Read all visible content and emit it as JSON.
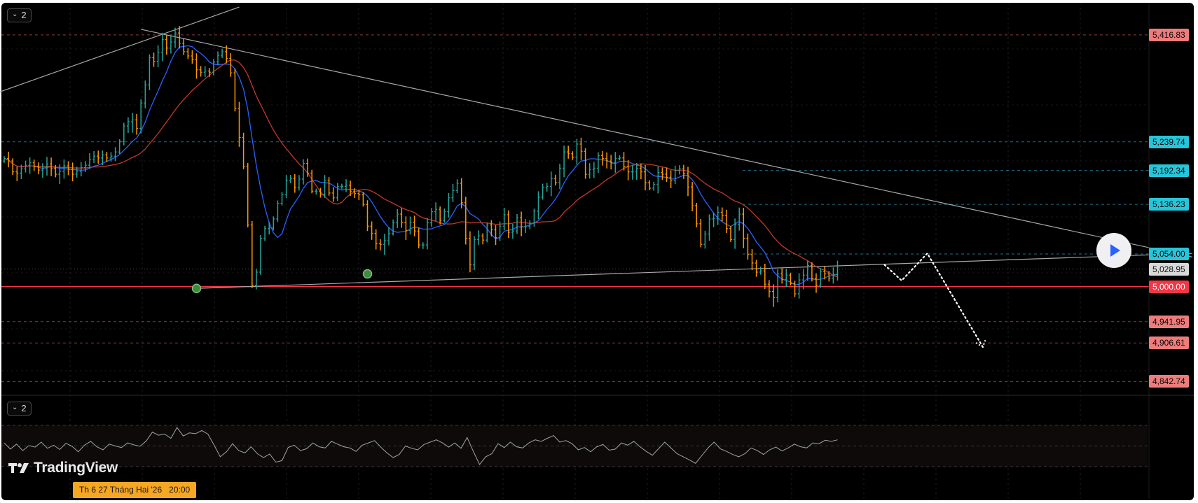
{
  "toolbar": {
    "main_pane_toggle": "2",
    "osc_pane_toggle": "2"
  },
  "branding": {
    "logo_text": "TradingView"
  },
  "cursor": {
    "date_label": "Th 6 27 Tháng Hai '26",
    "time_label": "20:00"
  },
  "colors": {
    "bull": "#26a69a",
    "bear": "#ff9800",
    "ma_fast": "#2962ff",
    "ma_slow": "#c0392b",
    "resistance_label_bg": "#26c6da",
    "support_label_bg": "#ef7b7b",
    "key_level": "#f23645",
    "current_price_bg": "#d9d9d9"
  },
  "chart_data": {
    "type": "candlestick",
    "y_axis": {
      "min": 4820,
      "max": 5470
    },
    "price_levels": [
      {
        "label": "5,416.83",
        "value": 5416.83,
        "kind": "support"
      },
      {
        "label": "5,239.74",
        "value": 5239.74,
        "kind": "resistance"
      },
      {
        "label": "5,192.34",
        "value": 5192.34,
        "kind": "resistance"
      },
      {
        "label": "5,136.23",
        "value": 5136.23,
        "kind": "resistance"
      },
      {
        "label": "5,054.00",
        "value": 5054.0,
        "kind": "resistance"
      },
      {
        "label": "5,028.95",
        "value": 5028.95,
        "kind": "current"
      },
      {
        "label": "5,000.00",
        "value": 5000.0,
        "kind": "key"
      },
      {
        "label": "4,941.95",
        "value": 4941.95,
        "kind": "support"
      },
      {
        "label": "4,906.61",
        "value": 4906.61,
        "kind": "support"
      },
      {
        "label": "4,842.74",
        "value": 4842.74,
        "kind": "support"
      }
    ],
    "series": [
      {
        "name": "",
        "kind": "price",
        "values": [
          5212,
          5208,
          5190,
          5188,
          5195,
          5201,
          5205,
          5199,
          5193,
          5196,
          5203,
          5196,
          5186,
          5191,
          5200,
          5194,
          5186,
          5191,
          5197,
          5201,
          5211,
          5216,
          5213,
          5218,
          5213,
          5216,
          5223,
          5240,
          5266,
          5273,
          5276,
          5262,
          5304,
          5334,
          5379,
          5373,
          5388,
          5409,
          5395,
          5405,
          5420,
          5403,
          5389,
          5382,
          5376,
          5359,
          5355,
          5357,
          5355,
          5372,
          5383,
          5389,
          5378,
          5354,
          5295,
          5247,
          5199,
          5102,
          5002,
          5024,
          5080,
          5096,
          5097,
          5112,
          5138,
          5152,
          5176,
          5179,
          5164,
          5178,
          5204,
          5188,
          5158,
          5158,
          5153,
          5176,
          5155,
          5147,
          5166,
          5166,
          5168,
          5158,
          5154,
          5152,
          5136,
          5100,
          5088,
          5071,
          5070,
          5076,
          5088,
          5106,
          5120,
          5106,
          5093,
          5106,
          5092,
          5069,
          5069,
          5106,
          5124,
          5128,
          5110,
          5124,
          5147,
          5159,
          5171,
          5139,
          5080,
          5036,
          5078,
          5084,
          5077,
          5102,
          5094,
          5081,
          5100,
          5119,
          5090,
          5092,
          5114,
          5099,
          5100,
          5105,
          5125,
          5148,
          5164,
          5166,
          5179,
          5172,
          5196,
          5223,
          5220,
          5214,
          5236,
          5224,
          5186,
          5194,
          5196,
          5217,
          5212,
          5208,
          5205,
          5212,
          5213,
          5199,
          5190,
          5190,
          5196,
          5190,
          5172,
          5163,
          5169,
          5189,
          5186,
          5181,
          5176,
          5192,
          5195,
          5187,
          5165,
          5134,
          5104,
          5070,
          5087,
          5112,
          5113,
          5123,
          5118,
          5096,
          5078,
          5103,
          5120,
          5080,
          5053,
          5039,
          5024,
          5026,
          5004,
          4992,
          4982,
          5021,
          5012,
          5019,
          5005,
          4988,
          5011,
          5019,
          5035,
          5013,
          5002,
          5025,
          5021,
          5014,
          5020,
          5034
        ]
      },
      {
        "name": "",
        "kind": "oscillator",
        "values": [
          0.58,
          0.42,
          0.55,
          0.38,
          0.51,
          0.47,
          0.6,
          0.44,
          0.52,
          0.41,
          0.57,
          0.49,
          0.35,
          0.52,
          0.62,
          0.48,
          0.4,
          0.55,
          0.5,
          0.46,
          0.58,
          0.53,
          0.49,
          0.63,
          0.86,
          0.78,
          0.81,
          0.7,
          0.98,
          0.76,
          0.84,
          0.82,
          0.9,
          0.81,
          0.52,
          0.22,
          0.35,
          0.56,
          0.38,
          0.32,
          0.48,
          0.3,
          0.2,
          0.29,
          0.08,
          0.12,
          0.46,
          0.52,
          0.38,
          0.43,
          0.58,
          0.48,
          0.45,
          0.62,
          0.55,
          0.48,
          0.45,
          0.36,
          0.52,
          0.58,
          0.64,
          0.47,
          0.32,
          0.2,
          0.28,
          0.5,
          0.44,
          0.4,
          0.54,
          0.6,
          0.66,
          0.58,
          0.47,
          0.58,
          0.44,
          0.72,
          0.36,
          0.02,
          0.22,
          0.3,
          0.56,
          0.46,
          0.6,
          0.48,
          0.45,
          0.58,
          0.66,
          0.62,
          0.7,
          0.77,
          0.6,
          0.64,
          0.56,
          0.4,
          0.46,
          0.35,
          0.48,
          0.54,
          0.39,
          0.42,
          0.58,
          0.52,
          0.62,
          0.48,
          0.36,
          0.26,
          0.43,
          0.6,
          0.45,
          0.3,
          0.22,
          0.14,
          0.05,
          0.25,
          0.45,
          0.6,
          0.43,
          0.36,
          0.28,
          0.22,
          0.3,
          0.45,
          0.38,
          0.28,
          0.4,
          0.47,
          0.37,
          0.45,
          0.55,
          0.48,
          0.45,
          0.58,
          0.56,
          0.65,
          0.62,
          0.66
        ]
      }
    ],
    "trendlines": [
      {
        "name": "",
        "from": [
          -10,
          5300
        ],
        "to": [
          55,
          5463
        ]
      },
      {
        "name": "",
        "from": [
          32,
          5426
        ],
        "to": [
          278,
          5049
        ]
      },
      {
        "name": "",
        "from": [
          45,
          4997
        ],
        "to": [
          278,
          5055
        ]
      }
    ],
    "markers": [
      {
        "index": 45,
        "value": 4997
      },
      {
        "index": 85,
        "value": 5021
      }
    ],
    "projection": [
      [
        206,
        5036
      ],
      [
        210,
        5010
      ],
      [
        216,
        5055
      ],
      [
        229,
        4900
      ]
    ],
    "grid": true
  }
}
